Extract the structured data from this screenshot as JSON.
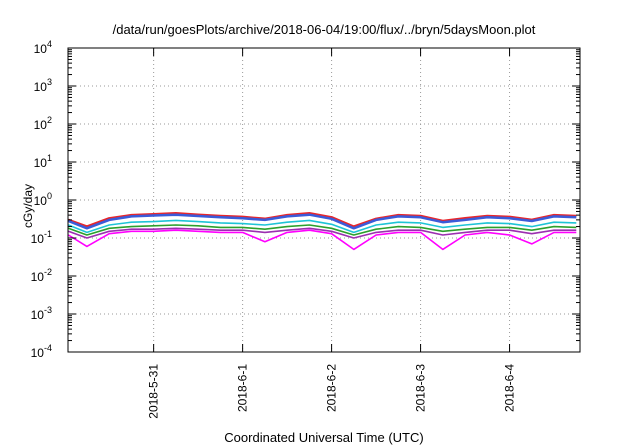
{
  "chart_data": {
    "type": "line",
    "title": "/data/run/goesPlots/archive/2018-06-04/19:00/flux/../bryn/5daysMoon.plot",
    "xlabel": "Coordinated Universal Time (UTC)",
    "ylabel": "cGy/day",
    "yscale": "log",
    "ylim": [
      0.0001,
      10000
    ],
    "xlim": [
      "2018-05-30T00:54",
      "2018-06-04T19:00"
    ],
    "grid": true,
    "y_ticks": [
      {
        "value": 0.0001,
        "base": "10",
        "exp": "-4"
      },
      {
        "value": 0.001,
        "base": "10",
        "exp": "-3"
      },
      {
        "value": 0.01,
        "base": "10",
        "exp": "-2"
      },
      {
        "value": 0.1,
        "base": "10",
        "exp": "-1"
      },
      {
        "value": 1,
        "base": "10",
        "exp": "0"
      },
      {
        "value": 10,
        "base": "10",
        "exp": "1"
      },
      {
        "value": 100,
        "base": "10",
        "exp": "2"
      },
      {
        "value": 1000,
        "base": "10",
        "exp": "3"
      },
      {
        "value": 10000,
        "base": "10",
        "exp": "4"
      }
    ],
    "x_ticks": [
      {
        "value": "2018-05-31",
        "label": "2018-5-31"
      },
      {
        "value": "2018-06-01",
        "label": "2018-6-1"
      },
      {
        "value": "2018-06-02",
        "label": "2018-6-2"
      },
      {
        "value": "2018-06-03",
        "label": "2018-6-3"
      },
      {
        "value": "2018-06-04",
        "label": "2018-6-4"
      }
    ],
    "x": [
      "2018-05-30T01:00",
      "2018-05-30T06:00",
      "2018-05-30T12:00",
      "2018-05-30T18:00",
      "2018-05-31T00:00",
      "2018-05-31T06:00",
      "2018-05-31T12:00",
      "2018-05-31T18:00",
      "2018-06-01T00:00",
      "2018-06-01T06:00",
      "2018-06-01T12:00",
      "2018-06-01T18:00",
      "2018-06-02T00:00",
      "2018-06-02T06:00",
      "2018-06-02T12:00",
      "2018-06-02T18:00",
      "2018-06-03T00:00",
      "2018-06-03T06:00",
      "2018-06-03T12:00",
      "2018-06-03T18:00",
      "2018-06-04T00:00",
      "2018-06-04T06:00",
      "2018-06-04T12:00",
      "2018-06-04T18:00"
    ],
    "series": [
      {
        "color": "#e8262b",
        "values": [
          0.3,
          0.2,
          0.33,
          0.4,
          0.42,
          0.45,
          0.41,
          0.38,
          0.36,
          0.32,
          0.4,
          0.45,
          0.35,
          0.2,
          0.32,
          0.4,
          0.38,
          0.28,
          0.33,
          0.38,
          0.36,
          0.3,
          0.4,
          0.38
        ]
      },
      {
        "color": "#3b5bd9",
        "values": [
          0.28,
          0.18,
          0.3,
          0.37,
          0.39,
          0.41,
          0.38,
          0.35,
          0.33,
          0.3,
          0.37,
          0.41,
          0.32,
          0.18,
          0.3,
          0.37,
          0.35,
          0.26,
          0.3,
          0.35,
          0.33,
          0.28,
          0.37,
          0.35
        ]
      },
      {
        "color": "#1ec4d6",
        "values": [
          0.22,
          0.14,
          0.22,
          0.26,
          0.27,
          0.29,
          0.27,
          0.25,
          0.24,
          0.22,
          0.26,
          0.29,
          0.23,
          0.14,
          0.22,
          0.26,
          0.25,
          0.19,
          0.22,
          0.25,
          0.24,
          0.2,
          0.26,
          0.25
        ]
      },
      {
        "color": "#2ca02c",
        "values": [
          0.18,
          0.12,
          0.18,
          0.2,
          0.21,
          0.22,
          0.21,
          0.19,
          0.19,
          0.17,
          0.2,
          0.22,
          0.18,
          0.12,
          0.17,
          0.2,
          0.19,
          0.15,
          0.17,
          0.19,
          0.19,
          0.16,
          0.2,
          0.19
        ]
      },
      {
        "color": "#9b2fb0",
        "values": [
          0.15,
          0.1,
          0.15,
          0.17,
          0.17,
          0.18,
          0.17,
          0.16,
          0.16,
          0.14,
          0.16,
          0.18,
          0.15,
          0.1,
          0.14,
          0.16,
          0.16,
          0.12,
          0.14,
          0.16,
          0.16,
          0.13,
          0.16,
          0.16
        ]
      },
      {
        "color": "#ff00ff",
        "values": [
          0.12,
          0.06,
          0.13,
          0.15,
          0.15,
          0.16,
          0.15,
          0.14,
          0.14,
          0.08,
          0.14,
          0.16,
          0.13,
          0.05,
          0.12,
          0.14,
          0.14,
          0.05,
          0.12,
          0.14,
          0.12,
          0.07,
          0.14,
          0.14
        ]
      }
    ]
  }
}
